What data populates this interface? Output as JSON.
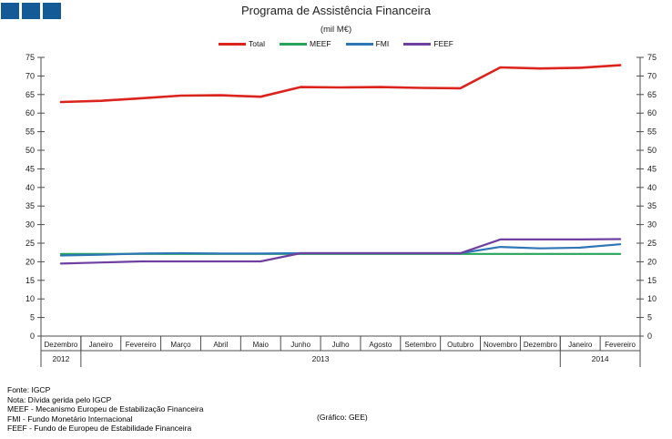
{
  "header": {
    "title": "Programa de Assistência Financeira",
    "subtitle": "(mil M€)",
    "logo_color": "#135A96",
    "logo_square_count": 3
  },
  "chart_data": {
    "type": "line",
    "categories": [
      "Dezembro",
      "Janeiro",
      "Fevereiro",
      "Março",
      "Abril",
      "Maio",
      "Junho",
      "Julho",
      "Agosto",
      "Setembro",
      "Outubro",
      "Novembro",
      "Dezembro",
      "Janeiro",
      "Fevereiro"
    ],
    "year_groups": [
      {
        "label": "2012",
        "span": 1
      },
      {
        "label": "2013",
        "span": 12
      },
      {
        "label": "2014",
        "span": 2
      }
    ],
    "series": [
      {
        "name": "Total",
        "color": "#DC241E",
        "values": [
          63.0,
          63.3,
          64.0,
          64.7,
          64.8,
          64.4,
          67.0,
          66.9,
          67.0,
          66.8,
          66.7,
          72.3,
          72.0,
          72.2,
          72.9
        ]
      },
      {
        "name": "MEEF",
        "color": "#27A45A",
        "values": [
          22.1,
          22.1,
          22.1,
          22.1,
          22.1,
          22.1,
          22.1,
          22.1,
          22.1,
          22.1,
          22.1,
          22.1,
          22.1,
          22.1,
          22.1
        ]
      },
      {
        "name": "FMI",
        "color": "#2F76B5",
        "values": [
          21.7,
          21.9,
          22.2,
          22.3,
          22.2,
          22.2,
          22.3,
          22.3,
          22.3,
          22.3,
          22.3,
          24.0,
          23.6,
          23.8,
          24.7
        ]
      },
      {
        "name": "FEEF",
        "color": "#7040A0",
        "values": [
          19.5,
          19.8,
          20.1,
          20.1,
          20.1,
          20.1,
          22.3,
          22.3,
          22.3,
          22.3,
          22.3,
          26.0,
          26.0,
          26.0,
          26.1
        ]
      }
    ],
    "title": "Programa de Assistência Financeira",
    "subtitle": "(mil M€)",
    "xlabel": "",
    "ylabel": "",
    "ylim": [
      0,
      75
    ],
    "ytick_step": 5,
    "grid": false,
    "legend_position": "top",
    "axis_sides": [
      "left",
      "right"
    ]
  },
  "footer": {
    "lines": [
      "Fonte: IGCP",
      "Nota: Dívida gerida pelo IGCP",
      "MEEF - Mecanismo Europeu de Estabilização Financeira",
      "FMI - Fundo Monetário Internacional",
      "FEEF - Fundo de Europeu de Estabilidade Financeira"
    ],
    "credit": "(Gráfico: GEE)"
  }
}
